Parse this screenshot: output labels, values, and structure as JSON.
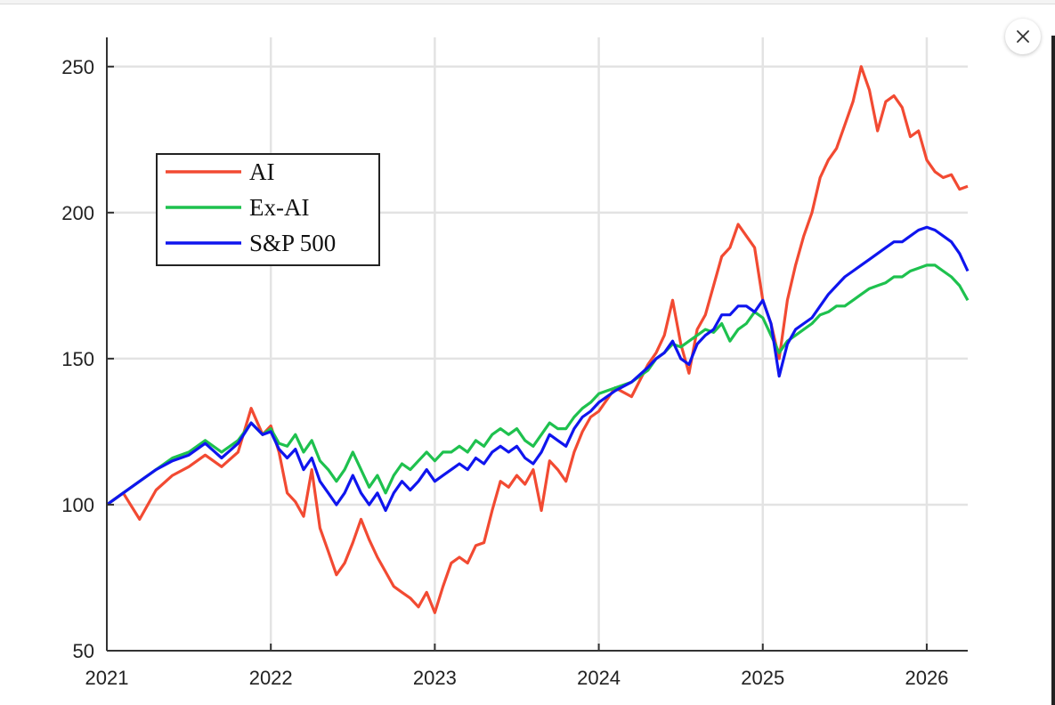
{
  "close_button": {
    "icon": "close-icon"
  },
  "chart_data": {
    "type": "line",
    "title": "",
    "xlabel": "",
    "ylabel": "",
    "xlim": [
      2021,
      2026.25
    ],
    "ylim": [
      50,
      260
    ],
    "x_ticks": [
      2021,
      2022,
      2023,
      2024,
      2025,
      2026
    ],
    "x_tick_labels": [
      "2021",
      "2022",
      "2023",
      "2024",
      "2025",
      "2026"
    ],
    "y_ticks": [
      50,
      100,
      150,
      200,
      250
    ],
    "y_tick_labels": [
      "50",
      "100",
      "150",
      "200",
      "250"
    ],
    "grid": true,
    "legend_position": "upper-left",
    "x": [
      2021.0,
      2021.1,
      2021.2,
      2021.3,
      2021.4,
      2021.5,
      2021.6,
      2021.7,
      2021.8,
      2021.88,
      2021.95,
      2022.0,
      2022.05,
      2022.1,
      2022.15,
      2022.2,
      2022.25,
      2022.3,
      2022.35,
      2022.4,
      2022.45,
      2022.5,
      2022.55,
      2022.6,
      2022.65,
      2022.7,
      2022.75,
      2022.8,
      2022.85,
      2022.9,
      2022.95,
      2023.0,
      2023.05,
      2023.1,
      2023.15,
      2023.2,
      2023.25,
      2023.3,
      2023.35,
      2023.4,
      2023.45,
      2023.5,
      2023.55,
      2023.6,
      2023.65,
      2023.7,
      2023.75,
      2023.8,
      2023.85,
      2023.9,
      2023.95,
      2024.0,
      2024.1,
      2024.2,
      2024.3,
      2024.35,
      2024.4,
      2024.45,
      2024.5,
      2024.55,
      2024.6,
      2024.65,
      2024.7,
      2024.75,
      2024.8,
      2024.85,
      2024.9,
      2024.95,
      2025.0,
      2025.05,
      2025.1,
      2025.15,
      2025.2,
      2025.25,
      2025.3,
      2025.35,
      2025.4,
      2025.45,
      2025.5,
      2025.55,
      2025.6,
      2025.65,
      2025.7,
      2025.75,
      2025.8,
      2025.85,
      2025.9,
      2025.95,
      2026.0,
      2026.05,
      2026.1,
      2026.15,
      2026.2,
      2026.25
    ],
    "series": [
      {
        "name": "AI",
        "color": "#f24a32",
        "values": [
          100,
          104,
          95,
          105,
          110,
          113,
          117,
          113,
          118,
          133,
          124,
          127,
          118,
          104,
          101,
          96,
          112,
          92,
          84,
          76,
          80,
          87,
          95,
          88,
          82,
          77,
          72,
          70,
          68,
          65,
          70,
          63,
          72,
          80,
          82,
          80,
          86,
          87,
          98,
          108,
          106,
          110,
          107,
          112,
          98,
          115,
          112,
          108,
          118,
          125,
          130,
          132,
          140,
          137,
          148,
          152,
          158,
          170,
          155,
          145,
          160,
          165,
          175,
          185,
          188,
          196,
          192,
          188,
          170,
          162,
          150,
          170,
          182,
          192,
          200,
          212,
          218,
          222,
          230,
          238,
          250,
          242,
          228,
          238,
          240,
          236,
          226,
          228,
          218,
          214,
          212,
          213,
          208,
          209
        ]
      },
      {
        "name": "Ex-AI",
        "color": "#1ec14e",
        "values": [
          100,
          104,
          108,
          112,
          116,
          118,
          122,
          118,
          122,
          128,
          124,
          126,
          121,
          120,
          124,
          118,
          122,
          115,
          112,
          108,
          112,
          118,
          112,
          106,
          110,
          104,
          110,
          114,
          112,
          115,
          118,
          115,
          118,
          118,
          120,
          118,
          122,
          120,
          124,
          126,
          124,
          126,
          122,
          120,
          124,
          128,
          126,
          126,
          130,
          133,
          135,
          138,
          140,
          142,
          146,
          150,
          152,
          155,
          154,
          156,
          158,
          160,
          159,
          162,
          156,
          160,
          162,
          166,
          164,
          158,
          152,
          156,
          158,
          160,
          162,
          165,
          166,
          168,
          168,
          170,
          172,
          174,
          175,
          176,
          178,
          178,
          180,
          181,
          182,
          182,
          180,
          178,
          175,
          170
        ]
      },
      {
        "name": "S&P 500",
        "color": "#0f15ee",
        "values": [
          100,
          104,
          108,
          112,
          115,
          117,
          121,
          116,
          121,
          128,
          124,
          125,
          119,
          116,
          119,
          112,
          116,
          108,
          104,
          100,
          104,
          110,
          104,
          100,
          104,
          98,
          104,
          108,
          105,
          108,
          112,
          108,
          110,
          112,
          114,
          112,
          116,
          114,
          118,
          120,
          118,
          120,
          116,
          114,
          118,
          124,
          122,
          120,
          126,
          130,
          132,
          135,
          139,
          142,
          147,
          150,
          152,
          156,
          150,
          148,
          155,
          158,
          160,
          165,
          165,
          168,
          168,
          166,
          170,
          162,
          144,
          155,
          160,
          162,
          164,
          168,
          172,
          175,
          178,
          180,
          182,
          184,
          186,
          188,
          190,
          190,
          192,
          194,
          195,
          194,
          192,
          190,
          186,
          180
        ]
      }
    ]
  }
}
